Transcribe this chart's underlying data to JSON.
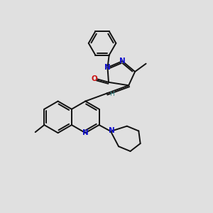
{
  "bg_color": "#e0e0e0",
  "bond_color": "#111111",
  "n_color": "#1111cc",
  "o_color": "#cc1111",
  "h_color": "#3a8a8a",
  "lw": 1.4,
  "figsize": [
    3.0,
    3.0
  ],
  "dpi": 100,
  "xlim": [
    0,
    10
  ],
  "ylim": [
    0,
    10
  ]
}
